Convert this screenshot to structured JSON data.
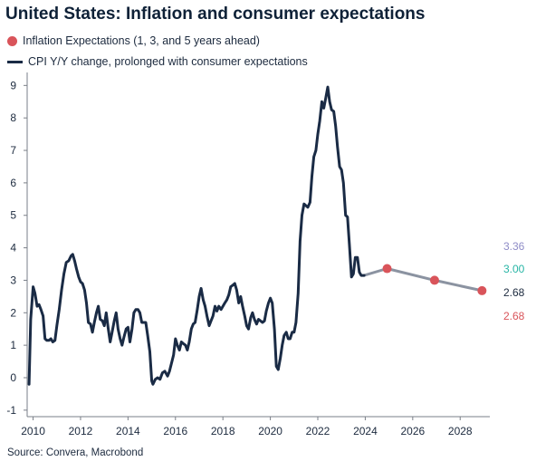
{
  "header": {
    "title": "United States: Inflation and consumer expectations"
  },
  "legend": [
    {
      "label": "Inflation Expectations (1, 3, and 5 years ahead)",
      "color": "#d9545a",
      "icon": "circle-marker"
    },
    {
      "label": "CPI Y/Y change, prolonged with consumer expectations",
      "color": "#1a2b45",
      "icon": "line-swatch"
    }
  ],
  "source": "Source: Convera, Macrobond",
  "chart_data": {
    "type": "line",
    "title": "United States: Inflation and consumer expectations",
    "xlabel": "",
    "ylabel": "",
    "xlim": [
      2009.75,
      2029.25
    ],
    "ylim": [
      -1.2,
      9.4
    ],
    "x_ticks": [
      2010,
      2012,
      2014,
      2016,
      2018,
      2020,
      2022,
      2024,
      2026,
      2028
    ],
    "y_ticks": [
      -1,
      0,
      1,
      2,
      3,
      4,
      5,
      6,
      7,
      8,
      9
    ],
    "grid": false,
    "legend_position": "top-left",
    "series": [
      {
        "name": "CPI Y/Y change, prolonged with consumer expectations",
        "color": "#1a2b45",
        "points": [
          [
            2009.83,
            -0.2
          ],
          [
            2009.9,
            1.8
          ],
          [
            2010.0,
            2.8
          ],
          [
            2010.08,
            2.6
          ],
          [
            2010.17,
            2.2
          ],
          [
            2010.25,
            2.25
          ],
          [
            2010.33,
            2.1
          ],
          [
            2010.42,
            1.9
          ],
          [
            2010.5,
            1.2
          ],
          [
            2010.58,
            1.15
          ],
          [
            2010.67,
            1.15
          ],
          [
            2010.75,
            1.2
          ],
          [
            2010.83,
            1.1
          ],
          [
            2010.92,
            1.15
          ],
          [
            2011.0,
            1.6
          ],
          [
            2011.1,
            2.1
          ],
          [
            2011.2,
            2.7
          ],
          [
            2011.3,
            3.2
          ],
          [
            2011.4,
            3.55
          ],
          [
            2011.5,
            3.6
          ],
          [
            2011.6,
            3.75
          ],
          [
            2011.67,
            3.8
          ],
          [
            2011.75,
            3.6
          ],
          [
            2011.83,
            3.35
          ],
          [
            2011.92,
            3.1
          ],
          [
            2012.0,
            2.95
          ],
          [
            2012.08,
            2.9
          ],
          [
            2012.17,
            2.7
          ],
          [
            2012.25,
            2.3
          ],
          [
            2012.33,
            1.7
          ],
          [
            2012.42,
            1.65
          ],
          [
            2012.5,
            1.4
          ],
          [
            2012.58,
            1.7
          ],
          [
            2012.67,
            2.0
          ],
          [
            2012.75,
            2.2
          ],
          [
            2012.83,
            1.8
          ],
          [
            2012.92,
            1.75
          ],
          [
            2013.0,
            1.6
          ],
          [
            2013.08,
            2.0
          ],
          [
            2013.17,
            1.5
          ],
          [
            2013.25,
            1.1
          ],
          [
            2013.33,
            1.4
          ],
          [
            2013.42,
            1.75
          ],
          [
            2013.5,
            2.0
          ],
          [
            2013.58,
            1.5
          ],
          [
            2013.67,
            1.2
          ],
          [
            2013.75,
            1.0
          ],
          [
            2013.83,
            1.25
          ],
          [
            2013.92,
            1.5
          ],
          [
            2014.0,
            1.55
          ],
          [
            2014.08,
            1.1
          ],
          [
            2014.17,
            1.5
          ],
          [
            2014.25,
            2.0
          ],
          [
            2014.33,
            2.1
          ],
          [
            2014.42,
            2.1
          ],
          [
            2014.5,
            2.0
          ],
          [
            2014.58,
            1.7
          ],
          [
            2014.67,
            1.7
          ],
          [
            2014.75,
            1.7
          ],
          [
            2014.83,
            1.3
          ],
          [
            2014.92,
            0.8
          ],
          [
            2015.0,
            -0.1
          ],
          [
            2015.05,
            -0.2
          ],
          [
            2015.15,
            -0.05
          ],
          [
            2015.25,
            0.0
          ],
          [
            2015.35,
            -0.05
          ],
          [
            2015.45,
            0.15
          ],
          [
            2015.55,
            0.2
          ],
          [
            2015.67,
            0.05
          ],
          [
            2015.75,
            0.2
          ],
          [
            2015.85,
            0.5
          ],
          [
            2015.92,
            0.7
          ],
          [
            2016.0,
            1.2
          ],
          [
            2016.08,
            1.0
          ],
          [
            2016.17,
            0.85
          ],
          [
            2016.25,
            1.1
          ],
          [
            2016.33,
            1.05
          ],
          [
            2016.42,
            1.0
          ],
          [
            2016.5,
            0.85
          ],
          [
            2016.58,
            1.1
          ],
          [
            2016.67,
            1.5
          ],
          [
            2016.75,
            1.65
          ],
          [
            2016.83,
            1.7
          ],
          [
            2016.92,
            2.1
          ],
          [
            2017.0,
            2.5
          ],
          [
            2017.08,
            2.75
          ],
          [
            2017.17,
            2.4
          ],
          [
            2017.25,
            2.2
          ],
          [
            2017.33,
            1.9
          ],
          [
            2017.42,
            1.6
          ],
          [
            2017.5,
            1.75
          ],
          [
            2017.58,
            1.9
          ],
          [
            2017.67,
            2.2
          ],
          [
            2017.75,
            2.05
          ],
          [
            2017.83,
            2.2
          ],
          [
            2017.92,
            2.1
          ],
          [
            2018.0,
            2.2
          ],
          [
            2018.08,
            2.3
          ],
          [
            2018.17,
            2.4
          ],
          [
            2018.25,
            2.55
          ],
          [
            2018.33,
            2.8
          ],
          [
            2018.42,
            2.85
          ],
          [
            2018.5,
            2.9
          ],
          [
            2018.58,
            2.7
          ],
          [
            2018.67,
            2.3
          ],
          [
            2018.75,
            2.5
          ],
          [
            2018.83,
            2.2
          ],
          [
            2018.92,
            1.9
          ],
          [
            2019.0,
            1.6
          ],
          [
            2019.08,
            1.5
          ],
          [
            2019.17,
            1.85
          ],
          [
            2019.25,
            2.0
          ],
          [
            2019.33,
            1.8
          ],
          [
            2019.42,
            1.65
          ],
          [
            2019.5,
            1.8
          ],
          [
            2019.58,
            1.75
          ],
          [
            2019.67,
            1.7
          ],
          [
            2019.75,
            1.75
          ],
          [
            2019.83,
            2.05
          ],
          [
            2019.92,
            2.3
          ],
          [
            2020.0,
            2.45
          ],
          [
            2020.08,
            2.3
          ],
          [
            2020.17,
            1.5
          ],
          [
            2020.25,
            0.35
          ],
          [
            2020.33,
            0.25
          ],
          [
            2020.42,
            0.6
          ],
          [
            2020.5,
            1.0
          ],
          [
            2020.58,
            1.3
          ],
          [
            2020.67,
            1.4
          ],
          [
            2020.75,
            1.2
          ],
          [
            2020.83,
            1.2
          ],
          [
            2020.92,
            1.4
          ],
          [
            2021.0,
            1.4
          ],
          [
            2021.08,
            1.7
          ],
          [
            2021.17,
            2.6
          ],
          [
            2021.25,
            4.2
          ],
          [
            2021.33,
            5.0
          ],
          [
            2021.42,
            5.35
          ],
          [
            2021.5,
            5.3
          ],
          [
            2021.58,
            5.25
          ],
          [
            2021.67,
            5.4
          ],
          [
            2021.75,
            6.2
          ],
          [
            2021.83,
            6.8
          ],
          [
            2021.92,
            7.0
          ],
          [
            2022.0,
            7.5
          ],
          [
            2022.08,
            7.9
          ],
          [
            2022.17,
            8.5
          ],
          [
            2022.25,
            8.3
          ],
          [
            2022.33,
            8.6
          ],
          [
            2022.42,
            8.95
          ],
          [
            2022.5,
            8.5
          ],
          [
            2022.58,
            8.25
          ],
          [
            2022.67,
            8.2
          ],
          [
            2022.75,
            7.75
          ],
          [
            2022.83,
            7.1
          ],
          [
            2022.92,
            6.5
          ],
          [
            2023.0,
            6.4
          ],
          [
            2023.08,
            6.0
          ],
          [
            2023.17,
            5.0
          ],
          [
            2023.25,
            4.95
          ],
          [
            2023.33,
            4.1
          ],
          [
            2023.42,
            3.1
          ],
          [
            2023.5,
            3.2
          ],
          [
            2023.58,
            3.7
          ],
          [
            2023.67,
            3.7
          ],
          [
            2023.75,
            3.25
          ],
          [
            2023.83,
            3.15
          ],
          [
            2023.95,
            3.15
          ],
          [
            2024.92,
            3.36
          ],
          [
            2026.92,
            3.0
          ],
          [
            2028.92,
            2.68
          ]
        ]
      },
      {
        "name": "Inflation Expectations (1, 3, and 5 years ahead)",
        "color": "#d9545a",
        "points": [
          [
            2024.92,
            3.36
          ],
          [
            2026.92,
            3.0
          ],
          [
            2028.92,
            2.68
          ]
        ]
      }
    ],
    "right_labels": [
      {
        "text": "3.36",
        "color": "#8f8cc7"
      },
      {
        "text": "3.00",
        "color": "#27b5a5"
      },
      {
        "text": "2.68",
        "color": "#1c2a3e"
      },
      {
        "text": "2.68",
        "color": "#d9545a"
      }
    ],
    "projection_line_color": "#8b93a1"
  }
}
